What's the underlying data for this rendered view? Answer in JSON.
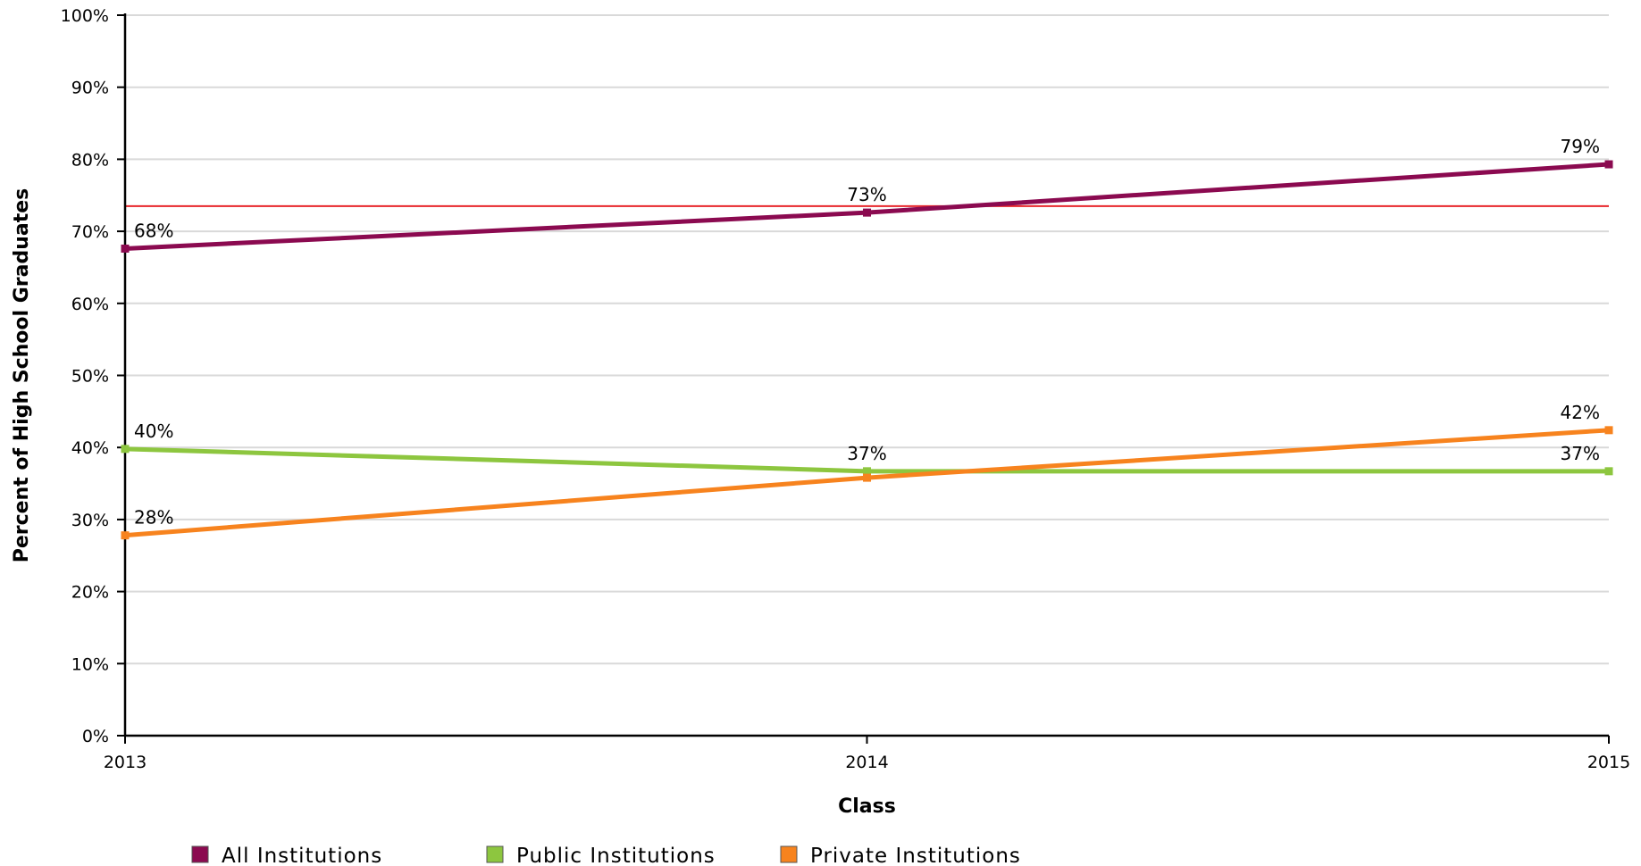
{
  "chart_data": {
    "type": "line",
    "xlabel": "Class",
    "ylabel": "Percent of High School Graduates",
    "x": [
      "2013",
      "2014",
      "2015"
    ],
    "ylim": [
      0,
      100
    ],
    "yticks": [
      0,
      10,
      20,
      30,
      40,
      50,
      60,
      70,
      80,
      90,
      100
    ],
    "ytick_suffix": "%",
    "grid": true,
    "legend_position": "bottom-left",
    "reference_line": {
      "value": 73.5,
      "color": "#e8262b"
    },
    "series": [
      {
        "name": "All Institutions",
        "color": "#8b0a50",
        "values": [
          67.6,
          72.6,
          79.3
        ],
        "labels": [
          "68%",
          "73%",
          "79%"
        ]
      },
      {
        "name": "Public Institutions",
        "color": "#8dc63f",
        "values": [
          39.8,
          36.7,
          36.7
        ],
        "labels": [
          "40%",
          "37%",
          "37%"
        ]
      },
      {
        "name": "Private Institutions",
        "color": "#f7831e",
        "values": [
          27.8,
          35.8,
          42.4
        ],
        "labels": [
          "28%",
          "",
          "42%"
        ]
      }
    ]
  }
}
